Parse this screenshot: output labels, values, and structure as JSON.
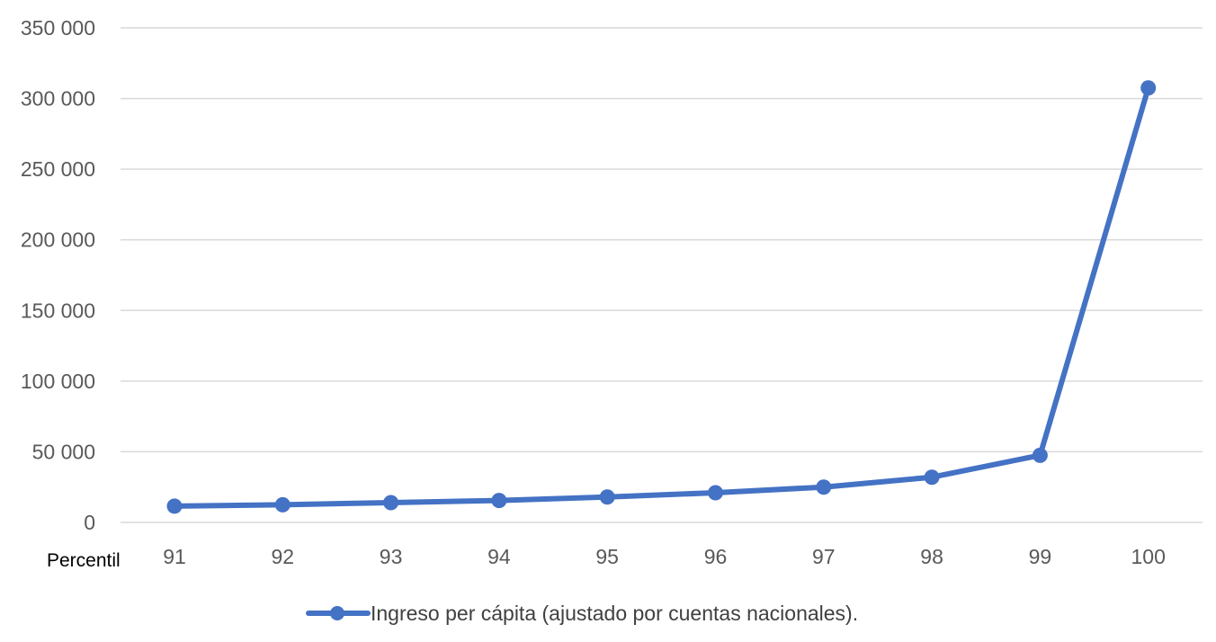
{
  "chart_data": {
    "type": "line",
    "title": "",
    "xlabel": "Percentil",
    "ylabel": "",
    "categories": [
      "91",
      "92",
      "93",
      "94",
      "95",
      "96",
      "97",
      "98",
      "99",
      "100"
    ],
    "series": [
      {
        "name": "Ingreso per cápita (ajustado por cuentas nacionales).",
        "color": "#4472C4",
        "values": [
          11500,
          12500,
          14000,
          15500,
          18000,
          21000,
          25000,
          32000,
          47500,
          307500
        ]
      }
    ],
    "ylim": [
      0,
      350000
    ],
    "yticks": [
      0,
      50000,
      100000,
      150000,
      200000,
      250000,
      300000,
      350000
    ],
    "ytick_labels": [
      "0",
      "50 000",
      "100 000",
      "150 000",
      "200 000",
      "250 000",
      "300 000",
      "350 000"
    ],
    "grid": true,
    "grid_color": "#D9D9D9",
    "legend_position": "bottom",
    "markers": true
  },
  "legend": {
    "label": "Ingreso per cápita (ajustado por cuentas nacionales)."
  },
  "axis": {
    "x_title": "Percentil"
  }
}
